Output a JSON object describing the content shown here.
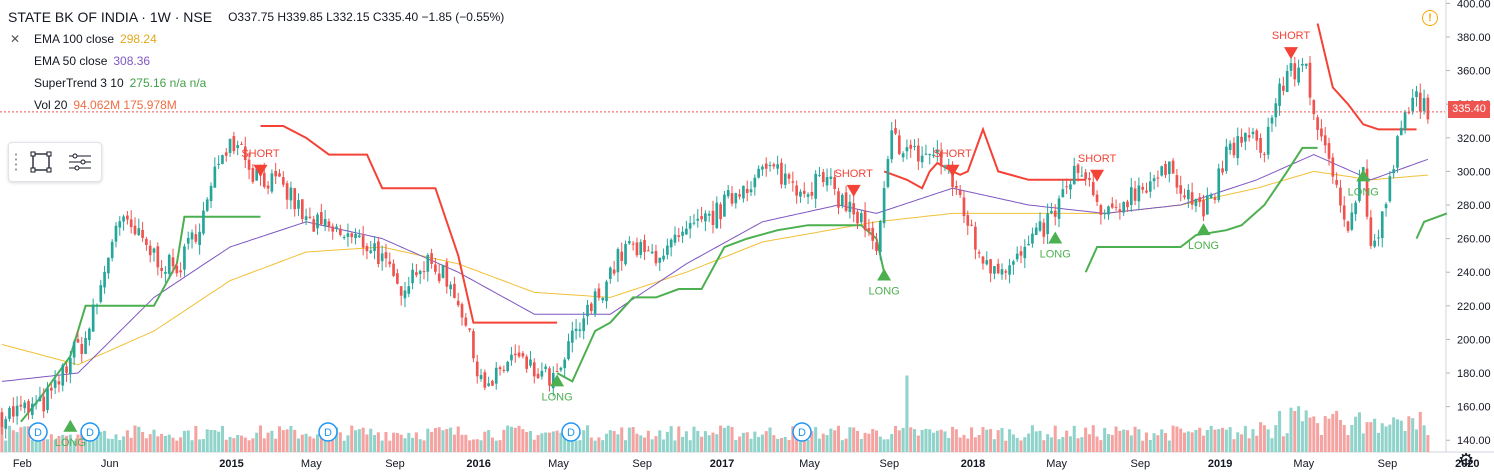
{
  "header": {
    "symbol": "STATE BK OF INDIA · 1W · NSE",
    "ohlc": "O337.75 H339.85 L332.15 C335.40 −1.85 (−0.55%)"
  },
  "indicators": [
    {
      "name": "EMA 100 close",
      "value": "298.24",
      "color": "#f2c037"
    },
    {
      "name": "EMA 50 close",
      "value": "308.36",
      "color": "#7e57c2"
    },
    {
      "name": "SuperTrend 3 10",
      "value": "275.16 n/a n/a",
      "color": "#43a047"
    },
    {
      "name": "Vol 20",
      "value": "94.062M  175.978M",
      "color": "#ef6c44"
    }
  ],
  "last_price_label": "335.40",
  "colors": {
    "up": "#26a69a",
    "down": "#ef5350",
    "supertrend_up": "#4caf50",
    "supertrend_down": "#f44336",
    "ema100": "#f2c037",
    "ema50": "#7e57c2",
    "vol_up": "#8fd3cb",
    "vol_down": "#f4a3a1"
  },
  "chart_data": {
    "type": "candlestick",
    "y_ticks": [
      "400.00",
      "380.00",
      "360.00",
      "340.00",
      "320.00",
      "300.00",
      "280.00",
      "260.00",
      "240.00",
      "220.00",
      "200.00",
      "180.00",
      "160.00",
      "140.00"
    ],
    "ylim": [
      133,
      402
    ],
    "x_ticks": [
      "Feb",
      "Jun",
      "2015",
      "May",
      "Sep",
      "2016",
      "May",
      "Sep",
      "2017",
      "May",
      "Sep",
      "2018",
      "May",
      "Sep",
      "2019",
      "May",
      "Sep",
      "2020"
    ],
    "price_anchors": [
      [
        0,
        155
      ],
      [
        10,
        160
      ],
      [
        14,
        170
      ],
      [
        18,
        190
      ],
      [
        22,
        200
      ],
      [
        26,
        230
      ],
      [
        30,
        270
      ],
      [
        34,
        265
      ],
      [
        40,
        250
      ],
      [
        46,
        240
      ],
      [
        50,
        260
      ],
      [
        54,
        280
      ],
      [
        58,
        315
      ],
      [
        62,
        320
      ],
      [
        66,
        300
      ],
      [
        70,
        295
      ],
      [
        76,
        285
      ],
      [
        80,
        270
      ],
      [
        86,
        265
      ],
      [
        92,
        260
      ],
      [
        98,
        255
      ],
      [
        104,
        230
      ],
      [
        110,
        245
      ],
      [
        116,
        240
      ],
      [
        120,
        225
      ],
      [
        124,
        190
      ],
      [
        128,
        170
      ],
      [
        134,
        190
      ],
      [
        140,
        180
      ],
      [
        146,
        175
      ],
      [
        150,
        200
      ],
      [
        154,
        215
      ],
      [
        160,
        240
      ],
      [
        164,
        255
      ],
      [
        170,
        250
      ],
      [
        176,
        255
      ],
      [
        182,
        265
      ],
      [
        188,
        275
      ],
      [
        194,
        290
      ],
      [
        200,
        300
      ],
      [
        204,
        300
      ],
      [
        210,
        290
      ],
      [
        216,
        295
      ],
      [
        222,
        280
      ],
      [
        226,
        270
      ],
      [
        230,
        250
      ],
      [
        234,
        320
      ],
      [
        240,
        310
      ],
      [
        246,
        310
      ],
      [
        252,
        285
      ],
      [
        256,
        255
      ],
      [
        260,
        245
      ],
      [
        266,
        245
      ],
      [
        272,
        260
      ],
      [
        278,
        280
      ],
      [
        282,
        300
      ],
      [
        286,
        290
      ],
      [
        290,
        270
      ],
      [
        296,
        285
      ],
      [
        302,
        295
      ],
      [
        308,
        300
      ],
      [
        314,
        280
      ],
      [
        318,
        280
      ],
      [
        322,
        310
      ],
      [
        326,
        320
      ],
      [
        332,
        315
      ],
      [
        336,
        350
      ],
      [
        340,
        360
      ],
      [
        343,
        365
      ],
      [
        346,
        320
      ],
      [
        350,
        300
      ],
      [
        354,
        270
      ],
      [
        358,
        300
      ],
      [
        360,
        255
      ],
      [
        362,
        260
      ],
      [
        366,
        305
      ],
      [
        368,
        325
      ],
      [
        372,
        345
      ],
      [
        376,
        335
      ]
    ],
    "ema50_anchors": [
      [
        0,
        175
      ],
      [
        20,
        180
      ],
      [
        40,
        225
      ],
      [
        60,
        255
      ],
      [
        80,
        270
      ],
      [
        100,
        260
      ],
      [
        120,
        240
      ],
      [
        140,
        215
      ],
      [
        160,
        215
      ],
      [
        180,
        245
      ],
      [
        200,
        270
      ],
      [
        220,
        280
      ],
      [
        230,
        275
      ],
      [
        250,
        290
      ],
      [
        270,
        280
      ],
      [
        290,
        275
      ],
      [
        310,
        280
      ],
      [
        330,
        295
      ],
      [
        345,
        310
      ],
      [
        360,
        295
      ],
      [
        376,
        308
      ]
    ],
    "ema100_anchors": [
      [
        0,
        197
      ],
      [
        20,
        185
      ],
      [
        40,
        205
      ],
      [
        60,
        235
      ],
      [
        80,
        252
      ],
      [
        100,
        255
      ],
      [
        120,
        245
      ],
      [
        140,
        228
      ],
      [
        160,
        225
      ],
      [
        180,
        240
      ],
      [
        200,
        258
      ],
      [
        230,
        270
      ],
      [
        250,
        275
      ],
      [
        270,
        275
      ],
      [
        290,
        275
      ],
      [
        310,
        280
      ],
      [
        330,
        290
      ],
      [
        345,
        300
      ],
      [
        360,
        295
      ],
      [
        376,
        298
      ]
    ],
    "supertrend": [
      {
        "dir": "up",
        "points": [
          [
            5,
            151
          ],
          [
            10,
            165
          ],
          [
            18,
            190
          ],
          [
            22,
            220
          ],
          [
            40,
            220
          ],
          [
            46,
            245
          ],
          [
            48,
            273
          ],
          [
            62,
            273
          ],
          [
            68,
            273
          ]
        ]
      },
      {
        "dir": "down",
        "points": [
          [
            68,
            327
          ],
          [
            74,
            327
          ],
          [
            80,
            320
          ],
          [
            86,
            310
          ],
          [
            96,
            310
          ],
          [
            100,
            290
          ],
          [
            108,
            290
          ],
          [
            114,
            290
          ],
          [
            120,
            250
          ],
          [
            124,
            210
          ],
          [
            130,
            210
          ],
          [
            146,
            210
          ]
        ]
      },
      {
        "dir": "up",
        "points": [
          [
            146,
            180
          ],
          [
            150,
            175
          ],
          [
            152,
            185
          ],
          [
            156,
            205
          ],
          [
            160,
            210
          ],
          [
            166,
            225
          ],
          [
            172,
            225
          ],
          [
            178,
            230
          ],
          [
            184,
            230
          ],
          [
            190,
            255
          ],
          [
            196,
            260
          ],
          [
            204,
            265
          ],
          [
            212,
            268
          ],
          [
            226,
            268
          ],
          [
            230,
            260
          ],
          [
            232,
            240
          ]
        ]
      },
      {
        "dir": "down",
        "points": [
          [
            232,
            300
          ],
          [
            238,
            295
          ],
          [
            242,
            290
          ],
          [
            244,
            300
          ],
          [
            246,
            305
          ],
          [
            250,
            300
          ],
          [
            252,
            298
          ],
          [
            254,
            300
          ],
          [
            258,
            325
          ],
          [
            262,
            300
          ],
          [
            270,
            295
          ],
          [
            285,
            295
          ]
        ]
      },
      {
        "dir": "up",
        "points": [
          [
            285,
            240
          ],
          [
            288,
            255
          ],
          [
            296,
            255
          ],
          [
            310,
            255
          ],
          [
            314,
            262
          ],
          [
            322,
            265
          ],
          [
            326,
            268
          ],
          [
            332,
            280
          ],
          [
            338,
            300
          ],
          [
            342,
            314
          ],
          [
            346,
            314
          ]
        ]
      },
      {
        "dir": "down",
        "points": [
          [
            346,
            388
          ],
          [
            350,
            350
          ],
          [
            354,
            340
          ],
          [
            358,
            328
          ],
          [
            362,
            325
          ],
          [
            368,
            325
          ],
          [
            372,
            325
          ]
        ]
      },
      {
        "dir": "up",
        "points": [
          [
            372,
            260
          ],
          [
            374,
            270
          ],
          [
            380,
            275
          ]
        ]
      }
    ],
    "signals": [
      {
        "text": "LONG",
        "dir": "up",
        "x": 18,
        "y": 151
      },
      {
        "text": "SHORT",
        "dir": "down",
        "x": 68,
        "y": 298
      },
      {
        "text": "LONG",
        "dir": "up",
        "x": 146,
        "y": 178
      },
      {
        "text": "SHORT",
        "dir": "down",
        "x": 224,
        "y": 286
      },
      {
        "text": "LONG",
        "dir": "up",
        "x": 232,
        "y": 241
      },
      {
        "text": "SHORT",
        "dir": "down",
        "x": 250,
        "y": 298
      },
      {
        "text": "LONG",
        "dir": "up",
        "x": 277,
        "y": 263
      },
      {
        "text": "SHORT",
        "dir": "down",
        "x": 288,
        "y": 295
      },
      {
        "text": "LONG",
        "dir": "up",
        "x": 316,
        "y": 268
      },
      {
        "text": "SHORT",
        "dir": "down",
        "x": 339,
        "y": 368
      },
      {
        "text": "LONG",
        "dir": "up",
        "x": 358,
        "y": 300
      }
    ],
    "dividend_markers": [
      "D",
      "D",
      "D",
      "D",
      "D"
    ]
  }
}
